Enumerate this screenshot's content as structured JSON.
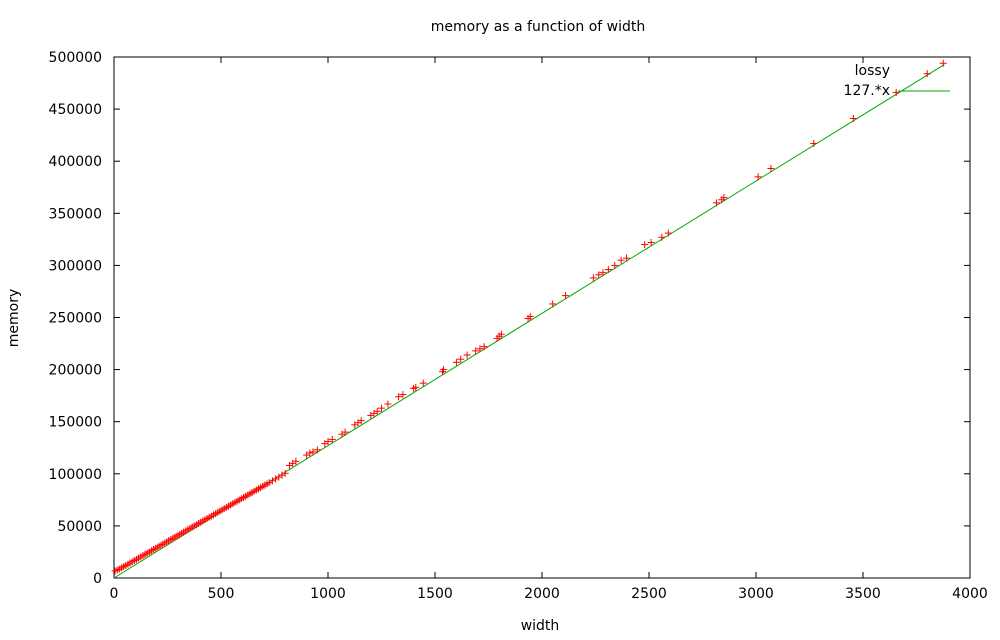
{
  "chart_data": {
    "type": "scatter",
    "title": "memory as a function of width",
    "xlabel": "width",
    "ylabel": "memory",
    "xlim": [
      0,
      4000
    ],
    "ylim": [
      0,
      500000
    ],
    "xticks": [
      "0",
      "500",
      "1000",
      "1500",
      "2000",
      "2500",
      "3000",
      "3500",
      "4000"
    ],
    "yticks": [
      "0",
      "50000",
      "100000",
      "150000",
      "200000",
      "250000",
      "300000",
      "350000",
      "400000",
      "450000",
      "500000"
    ],
    "grid": false,
    "legend_position": "top-right",
    "series": [
      {
        "name": "lossy",
        "kind": "points",
        "marker": "plus",
        "color": "#ff0000",
        "points": [
          [
            5,
            6800
          ],
          [
            15,
            7600
          ],
          [
            25,
            8500
          ],
          [
            35,
            9800
          ],
          [
            45,
            10900
          ],
          [
            55,
            12000
          ],
          [
            65,
            13200
          ],
          [
            75,
            14400
          ],
          [
            85,
            15600
          ],
          [
            95,
            16800
          ],
          [
            105,
            17900
          ],
          [
            115,
            19100
          ],
          [
            125,
            20300
          ],
          [
            135,
            21500
          ],
          [
            145,
            22700
          ],
          [
            155,
            23800
          ],
          [
            165,
            25000
          ],
          [
            175,
            26200
          ],
          [
            185,
            27400
          ],
          [
            195,
            28600
          ],
          [
            205,
            29800
          ],
          [
            215,
            31000
          ],
          [
            225,
            32200
          ],
          [
            235,
            33400
          ],
          [
            245,
            34500
          ],
          [
            255,
            35700
          ],
          [
            265,
            36900
          ],
          [
            275,
            38100
          ],
          [
            285,
            39300
          ],
          [
            295,
            40500
          ],
          [
            305,
            41600
          ],
          [
            315,
            42800
          ],
          [
            325,
            44000
          ],
          [
            335,
            45200
          ],
          [
            345,
            46400
          ],
          [
            355,
            47600
          ],
          [
            365,
            48800
          ],
          [
            375,
            50000
          ],
          [
            385,
            51100
          ],
          [
            395,
            52300
          ],
          [
            405,
            53500
          ],
          [
            415,
            54700
          ],
          [
            425,
            55900
          ],
          [
            435,
            57100
          ],
          [
            445,
            58300
          ],
          [
            455,
            59400
          ],
          [
            465,
            60600
          ],
          [
            475,
            61800
          ],
          [
            485,
            63000
          ],
          [
            495,
            64200
          ],
          [
            505,
            65400
          ],
          [
            515,
            66600
          ],
          [
            525,
            67800
          ],
          [
            535,
            68900
          ],
          [
            545,
            70100
          ],
          [
            555,
            71300
          ],
          [
            565,
            72500
          ],
          [
            575,
            73700
          ],
          [
            585,
            74900
          ],
          [
            595,
            76100
          ],
          [
            605,
            77300
          ],
          [
            615,
            78400
          ],
          [
            625,
            79600
          ],
          [
            635,
            80800
          ],
          [
            645,
            82000
          ],
          [
            655,
            83200
          ],
          [
            665,
            84400
          ],
          [
            675,
            85600
          ],
          [
            685,
            86800
          ],
          [
            695,
            87900
          ],
          [
            705,
            89100
          ],
          [
            715,
            90300
          ],
          [
            725,
            91500
          ],
          [
            740,
            93300
          ],
          [
            755,
            95100
          ],
          [
            770,
            96900
          ],
          [
            785,
            98700
          ],
          [
            800,
            100500
          ],
          [
            820,
            108000
          ],
          [
            835,
            110000
          ],
          [
            850,
            112000
          ],
          [
            900,
            118000
          ],
          [
            915,
            120000
          ],
          [
            930,
            121000
          ],
          [
            950,
            123000
          ],
          [
            985,
            129000
          ],
          [
            1000,
            131000
          ],
          [
            1020,
            133000
          ],
          [
            1065,
            138000
          ],
          [
            1080,
            140000
          ],
          [
            1125,
            147000
          ],
          [
            1140,
            149000
          ],
          [
            1155,
            151000
          ],
          [
            1200,
            156000
          ],
          [
            1215,
            158000
          ],
          [
            1230,
            160000
          ],
          [
            1250,
            163000
          ],
          [
            1280,
            167000
          ],
          [
            1330,
            174000
          ],
          [
            1350,
            176000
          ],
          [
            1400,
            182000
          ],
          [
            1410,
            183000
          ],
          [
            1445,
            187000
          ],
          [
            1535,
            198000
          ],
          [
            1540,
            200000
          ],
          [
            1600,
            207000
          ],
          [
            1620,
            210000
          ],
          [
            1650,
            214000
          ],
          [
            1690,
            218000
          ],
          [
            1710,
            220000
          ],
          [
            1730,
            222000
          ],
          [
            1790,
            230000
          ],
          [
            1800,
            232000
          ],
          [
            1810,
            234000
          ],
          [
            1935,
            249000
          ],
          [
            1945,
            251000
          ],
          [
            2050,
            263000
          ],
          [
            2110,
            271000
          ],
          [
            2240,
            288000
          ],
          [
            2265,
            291000
          ],
          [
            2285,
            293000
          ],
          [
            2310,
            296000
          ],
          [
            2340,
            300000
          ],
          [
            2370,
            305000
          ],
          [
            2395,
            307000
          ],
          [
            2480,
            320000
          ],
          [
            2510,
            322000
          ],
          [
            2560,
            327000
          ],
          [
            2590,
            331000
          ],
          [
            2815,
            360000
          ],
          [
            2840,
            363000
          ],
          [
            2850,
            365000
          ],
          [
            3010,
            385000
          ],
          [
            3070,
            393000
          ],
          [
            3270,
            417000
          ],
          [
            3455,
            441000
          ],
          [
            3655,
            466000
          ],
          [
            3800,
            484000
          ],
          [
            3875,
            494000
          ]
        ]
      },
      {
        "name": "127.*x",
        "kind": "line",
        "color": "#00aa00",
        "function": {
          "type": "linear",
          "slope": 127,
          "intercept": 0
        },
        "xrange": [
          0,
          3880
        ]
      }
    ]
  }
}
